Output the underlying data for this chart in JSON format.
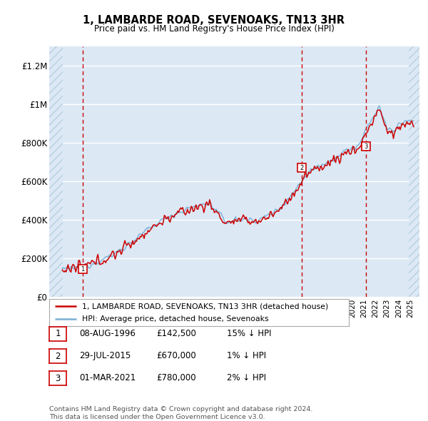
{
  "title": "1, LAMBARDE ROAD, SEVENOAKS, TN13 3HR",
  "subtitle": "Price paid vs. HM Land Registry's House Price Index (HPI)",
  "ylim": [
    0,
    1300000
  ],
  "yticks": [
    0,
    200000,
    400000,
    600000,
    800000,
    1000000,
    1200000
  ],
  "ytick_labels": [
    "£0",
    "£200K",
    "£400K",
    "£600K",
    "£800K",
    "£1M",
    "£1.2M"
  ],
  "xlim_start": 1993.7,
  "xlim_end": 2025.8,
  "hatch_left_end": 1994.9,
  "hatch_right_start": 2024.9,
  "sale_dates": [
    1996.59,
    2015.57,
    2021.17
  ],
  "sale_prices": [
    142500,
    670000,
    780000
  ],
  "sale_labels": [
    "1",
    "2",
    "3"
  ],
  "sale_info": [
    {
      "num": "1",
      "date": "08-AUG-1996",
      "price": "£142,500",
      "hpi": "15% ↓ HPI"
    },
    {
      "num": "2",
      "date": "29-JUL-2015",
      "price": "£670,000",
      "hpi": "1% ↓ HPI"
    },
    {
      "num": "3",
      "date": "01-MAR-2021",
      "price": "£780,000",
      "hpi": "2% ↓ HPI"
    }
  ],
  "legend_line1": "1, LAMBARDE ROAD, SEVENOAKS, TN13 3HR (detached house)",
  "legend_line2": "HPI: Average price, detached house, Sevenoaks",
  "footer1": "Contains HM Land Registry data © Crown copyright and database right 2024.",
  "footer2": "This data is licensed under the Open Government Licence v3.0.",
  "price_line_color": "#cc0000",
  "hpi_line_color": "#7aafd4",
  "bg_color": "#dce9f5",
  "hatch_color": "#b8cfe0",
  "grid_color": "#ffffff",
  "vline_color": "#cc0000"
}
